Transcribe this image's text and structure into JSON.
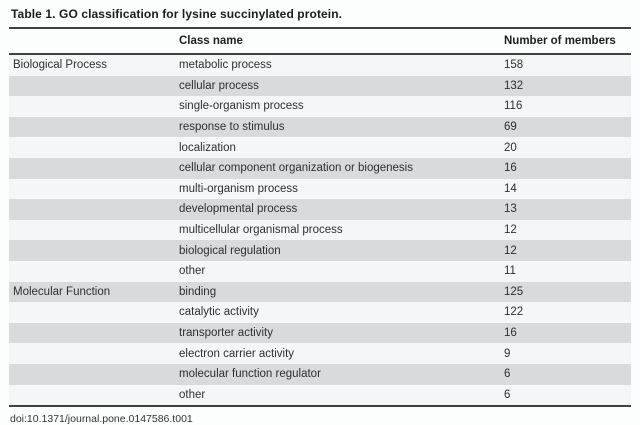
{
  "page": {
    "title": "Table 1. GO classification for lysine succinylated protein.",
    "doi": "doi:10.1371/journal.pone.0147586.t001"
  },
  "table": {
    "columns": [
      {
        "key": "category",
        "label": ""
      },
      {
        "key": "class_name",
        "label": "Class name"
      },
      {
        "key": "members",
        "label": "Number of members"
      }
    ],
    "groups": [
      {
        "category": "Biological Process",
        "rows": [
          {
            "class_name": "metabolic process",
            "members": 158
          },
          {
            "class_name": "cellular process",
            "members": 132
          },
          {
            "class_name": "single-organism process",
            "members": 116
          },
          {
            "class_name": "response to stimulus",
            "members": 69
          },
          {
            "class_name": "localization",
            "members": 20
          },
          {
            "class_name": "cellular component organization or biogenesis",
            "members": 16
          },
          {
            "class_name": "multi-organism process",
            "members": 14
          },
          {
            "class_name": "developmental process",
            "members": 13
          },
          {
            "class_name": "multicellular organismal process",
            "members": 12
          },
          {
            "class_name": "biological regulation",
            "members": 12
          },
          {
            "class_name": "other",
            "members": 11
          }
        ]
      },
      {
        "category": "Molecular Function",
        "rows": [
          {
            "class_name": "binding",
            "members": 125
          },
          {
            "class_name": "catalytic activity",
            "members": 122
          },
          {
            "class_name": "transporter activity",
            "members": 16
          },
          {
            "class_name": "electron carrier activity",
            "members": 9
          },
          {
            "class_name": "molecular function regulator",
            "members": 6
          },
          {
            "class_name": "other",
            "members": 6
          }
        ]
      }
    ]
  },
  "colors": {
    "stripe_gray": "#d8dadb",
    "stripe_light": "#f5f6f7",
    "rule": "#3f3f3f",
    "text": "#2f2f2f"
  }
}
